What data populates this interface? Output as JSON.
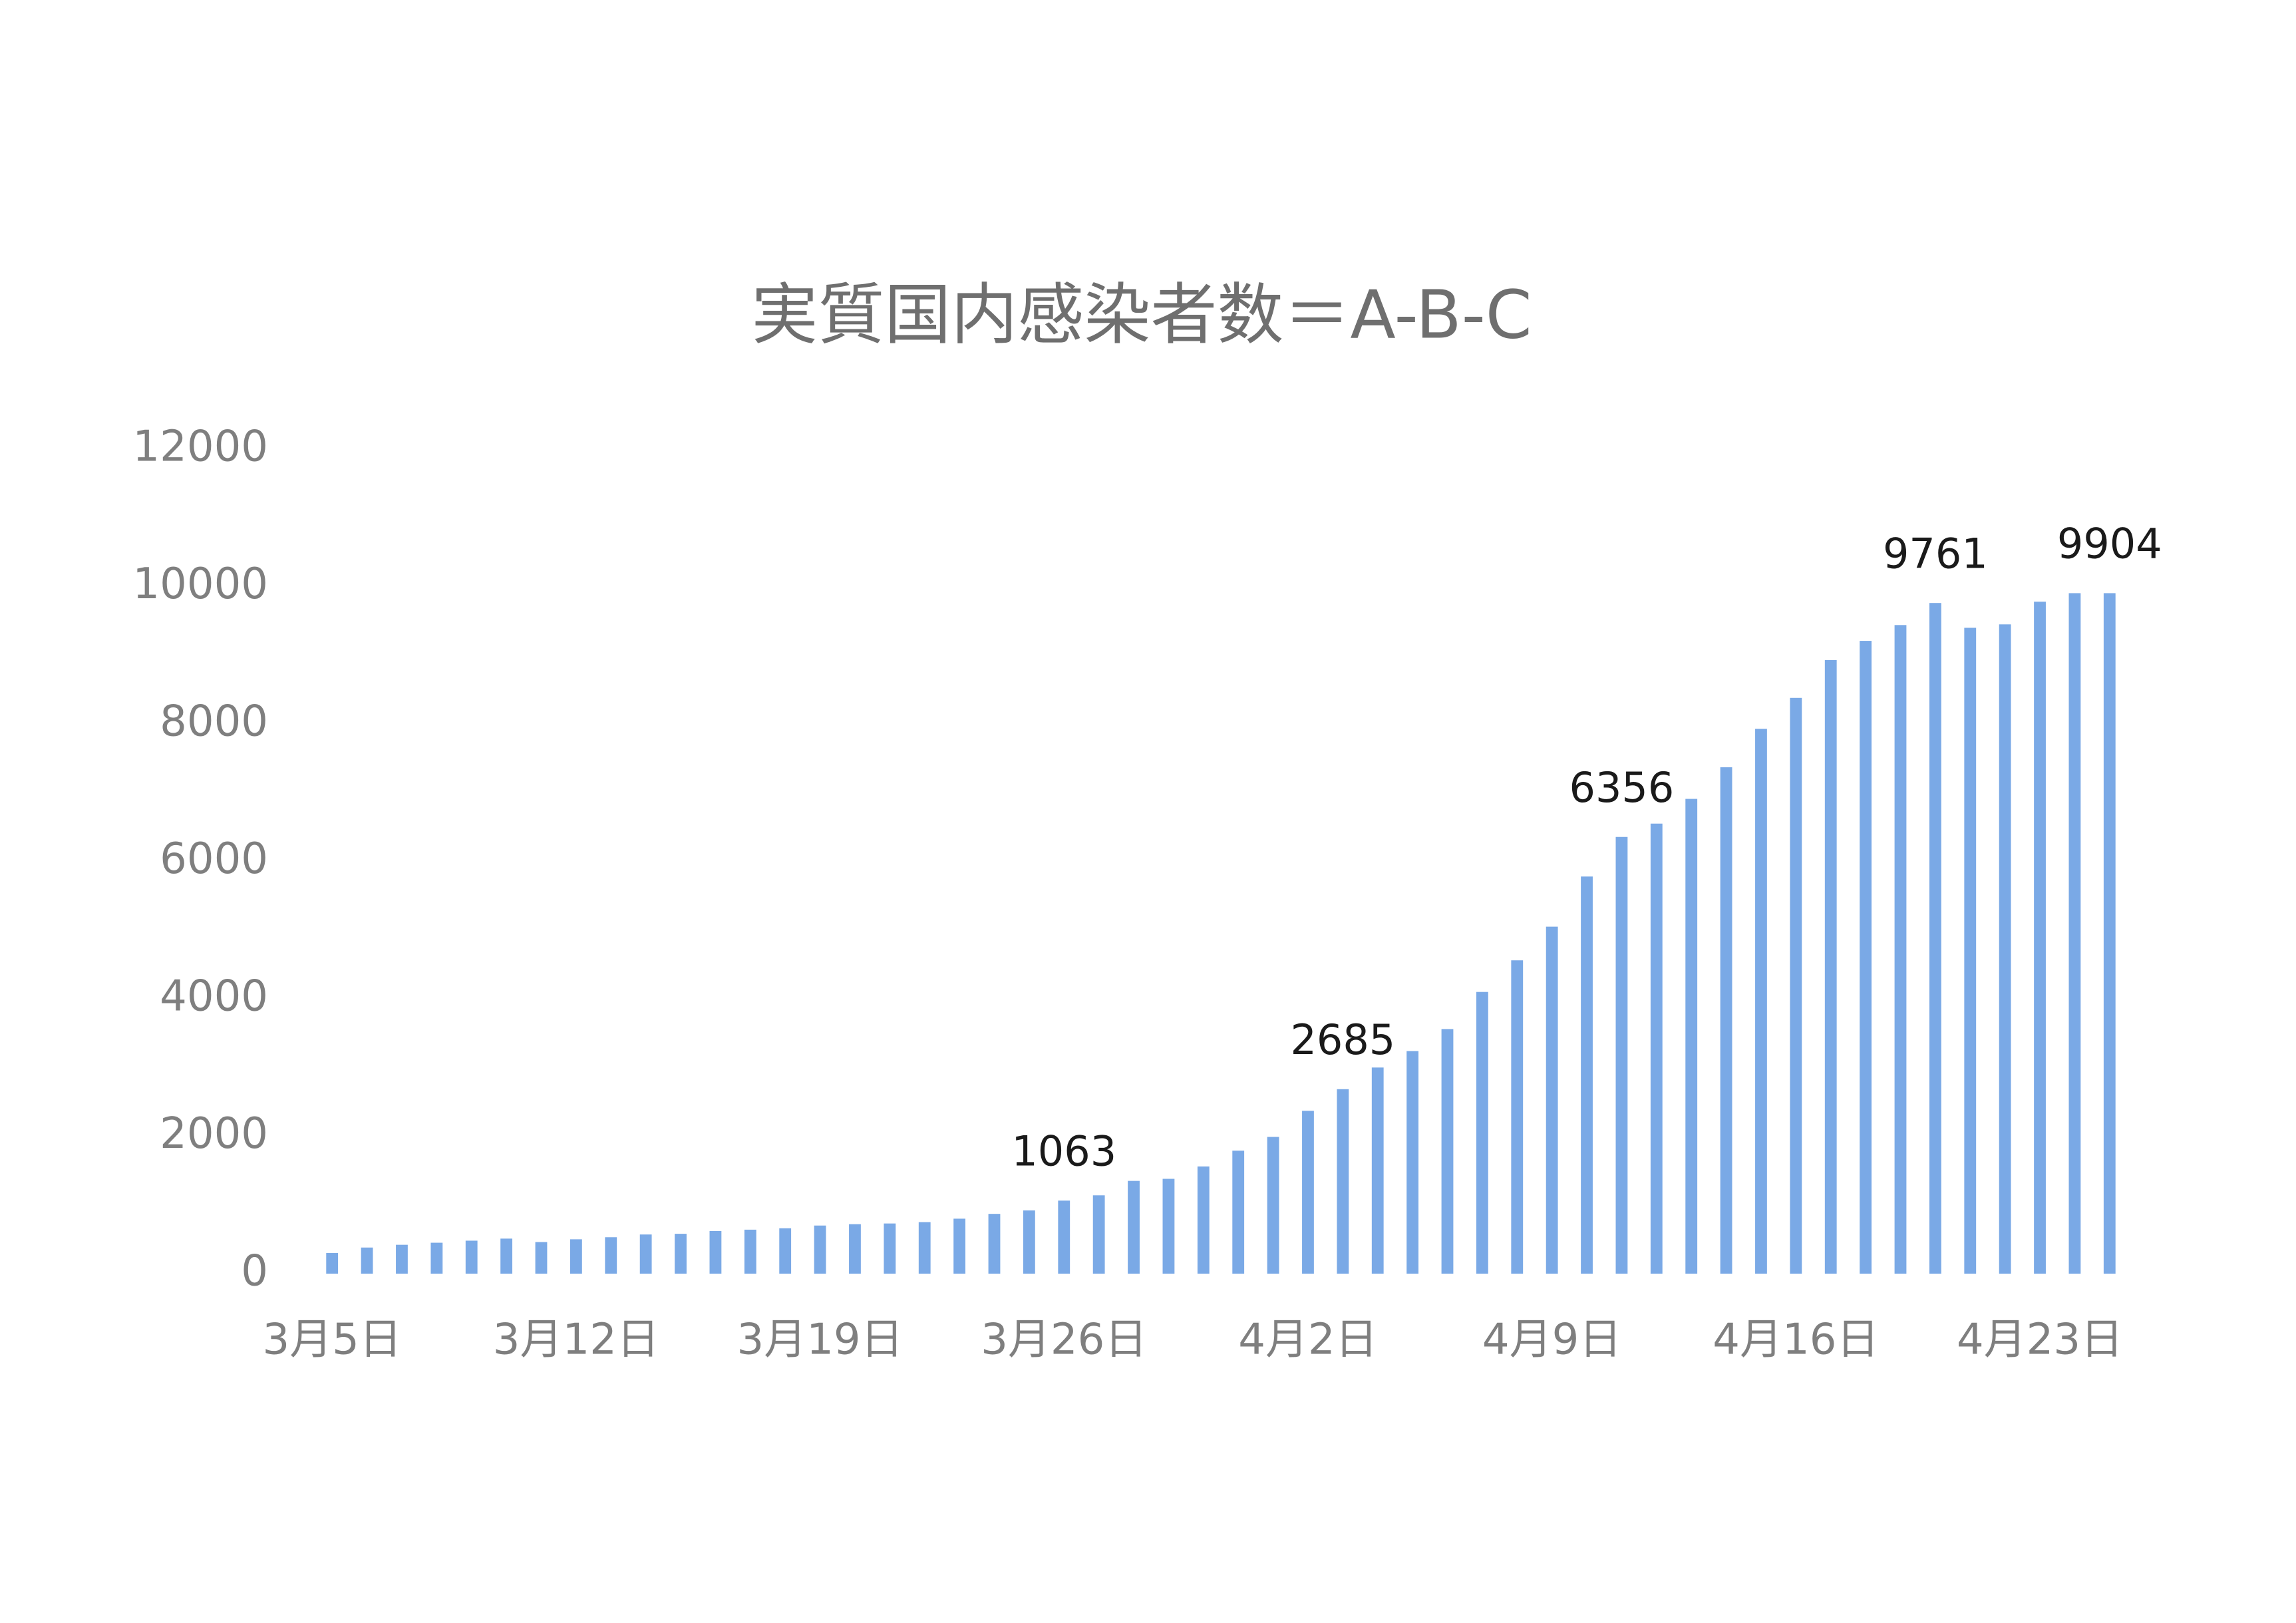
{
  "chart_data": {
    "type": "bar",
    "title": "実質国内感染者数＝A-B-C",
    "categories": [
      "3月5日",
      null,
      null,
      null,
      null,
      null,
      null,
      "3月12日",
      null,
      null,
      null,
      null,
      null,
      null,
      "3月19日",
      null,
      null,
      null,
      null,
      null,
      null,
      "3月26日",
      null,
      null,
      null,
      null,
      null,
      null,
      "4月2日",
      null,
      null,
      null,
      null,
      null,
      null,
      "4月9日",
      null,
      null,
      null,
      null,
      null,
      null,
      "4月16日",
      null,
      null,
      null,
      null,
      null,
      null,
      "4月23日",
      null,
      null
    ],
    "values": [
      300,
      380,
      420,
      450,
      480,
      510,
      460,
      500,
      530,
      570,
      580,
      620,
      640,
      660,
      700,
      720,
      730,
      750,
      800,
      870,
      920,
      1063,
      1140,
      1350,
      1380,
      1560,
      1790,
      1990,
      2370,
      2685,
      3000,
      3240,
      3560,
      4100,
      4560,
      5050,
      5780,
      6356,
      6550,
      6910,
      7370,
      7930,
      8380,
      8930,
      9210,
      9440,
      9761,
      9400,
      9450,
      9780,
      9904,
      9904
    ],
    "value_labels": [
      null,
      null,
      null,
      null,
      null,
      null,
      null,
      null,
      null,
      null,
      null,
      null,
      null,
      null,
      null,
      null,
      null,
      null,
      null,
      null,
      null,
      "1063",
      null,
      null,
      null,
      null,
      null,
      null,
      null,
      "2685",
      null,
      null,
      null,
      null,
      null,
      null,
      null,
      "6356",
      null,
      null,
      null,
      null,
      null,
      null,
      null,
      null,
      "9761",
      null,
      null,
      null,
      null,
      "9904"
    ],
    "color": "#7aa9e6",
    "ylim": [
      0,
      12000
    ],
    "yticks": [
      0,
      2000,
      4000,
      6000,
      8000,
      10000,
      12000
    ],
    "grid": false
  }
}
